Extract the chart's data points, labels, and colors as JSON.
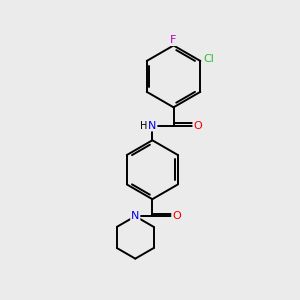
{
  "background_color": "#ebebeb",
  "atom_colors": {
    "C": "#000000",
    "N": "#0000ee",
    "O": "#ee0000",
    "Cl": "#33bb33",
    "F": "#bb00bb",
    "H": "#000000"
  },
  "bond_color": "#000000",
  "bond_width": 1.4
}
